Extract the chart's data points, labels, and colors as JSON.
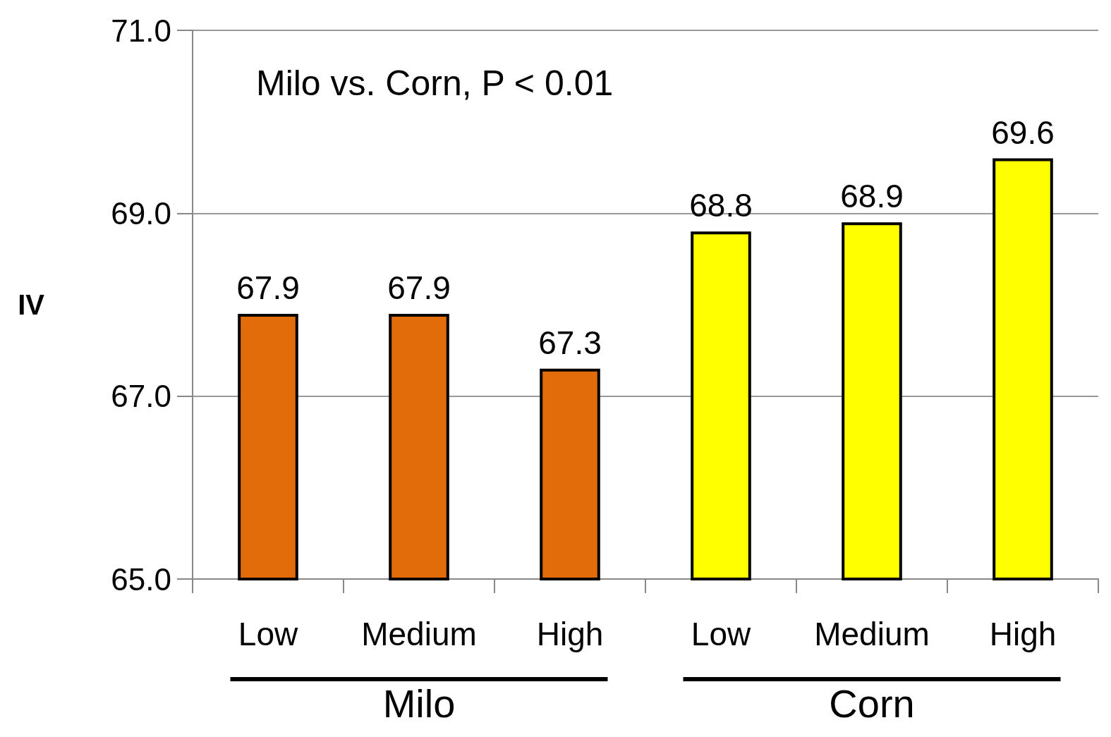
{
  "chart_data": {
    "type": "bar",
    "ylabel": "IV",
    "categories": [
      "Low",
      "Medium",
      "High",
      "Low",
      "Medium",
      "High"
    ],
    "values": [
      67.9,
      67.9,
      67.3,
      68.8,
      68.9,
      69.6
    ],
    "colors": [
      "#e36c0a",
      "#e36c0a",
      "#e36c0a",
      "#ffff00",
      "#ffff00",
      "#ffff00"
    ],
    "ylim": [
      65,
      71
    ],
    "yticks": [
      {
        "value": 65,
        "label": "65.0"
      },
      {
        "value": 67,
        "label": "67.0"
      },
      {
        "value": 69,
        "label": "69.0"
      },
      {
        "value": 71,
        "label": "71.0"
      }
    ],
    "grid": "y",
    "data_labels": true,
    "annotations": [
      "Milo vs. Corn, P < 0.01",
      "Milo",
      "Corn"
    ]
  }
}
